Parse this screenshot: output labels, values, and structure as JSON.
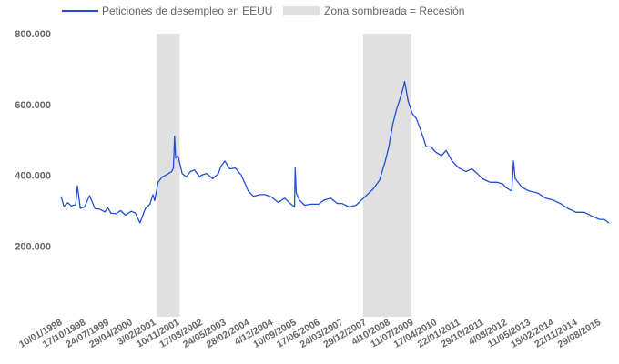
{
  "chart_data": {
    "type": "line",
    "legend": {
      "position": "top-left",
      "series_label": "Peticiones de desempleo en EEUU",
      "shade_label": "Zona sombreada = Recesión"
    },
    "colors": {
      "line": "#1f4fd6",
      "recession": "#e0e0e0",
      "text": "#666666"
    },
    "grid": false,
    "ylim": [
      0,
      800000
    ],
    "ytick_values": [
      200000,
      400000,
      600000,
      800000
    ],
    "ytick_labels": [
      "200.000",
      "400.000",
      "600.000",
      "800.000"
    ],
    "xlim": [
      "1998-01-10",
      "2015-12-31"
    ],
    "xtick_labels": [
      "10/01/1998",
      "17/10/1998",
      "24/07/1999",
      "29/04/2000",
      "3/02/2001",
      "10/11/2001",
      "17/08/2002",
      "24/05/2003",
      "28/02/2004",
      "4/12/2004",
      "10/09/2005",
      "17/06/2006",
      "24/03/2007",
      "29/12/2007",
      "4/10/2008",
      "11/07/2009",
      "17/04/2010",
      "22/01/2011",
      "29/10/2011",
      "4/08/2012",
      "11/05/2013",
      "15/02/2014",
      "22/11/2014",
      "29/08/2015"
    ],
    "xtick_dates": [
      "1998-01-10",
      "1998-10-17",
      "1999-07-24",
      "2000-04-29",
      "2001-02-03",
      "2001-11-10",
      "2002-08-17",
      "2003-05-24",
      "2004-02-28",
      "2004-12-04",
      "2005-09-10",
      "2006-06-17",
      "2007-03-24",
      "2007-12-29",
      "2008-10-04",
      "2009-07-11",
      "2010-04-17",
      "2011-01-22",
      "2011-10-29",
      "2012-08-04",
      "2013-05-11",
      "2014-02-15",
      "2014-11-22",
      "2015-08-29"
    ],
    "recessions": [
      [
        "2001-03-01",
        "2001-11-30"
      ],
      [
        "2007-12-01",
        "2009-06-30"
      ]
    ],
    "series": [
      {
        "name": "Peticiones de desempleo en EEUU",
        "x": [
          "1998-01-10",
          "1998-02-14",
          "1998-04-04",
          "1998-05-16",
          "1998-06-06",
          "1998-07-04",
          "1998-07-25",
          "1998-08-29",
          "1998-10-17",
          "1998-12-19",
          "1999-02-20",
          "1999-04-17",
          "1999-06-19",
          "1999-07-24",
          "1999-08-28",
          "1999-10-30",
          "1999-12-25",
          "2000-02-19",
          "2000-04-29",
          "2000-06-17",
          "2000-08-12",
          "2000-10-14",
          "2000-12-09",
          "2001-01-13",
          "2001-02-03",
          "2001-03-17",
          "2001-05-05",
          "2001-06-30",
          "2001-08-25",
          "2001-09-15",
          "2001-09-29",
          "2001-10-13",
          "2001-11-10",
          "2001-12-29",
          "2002-02-16",
          "2002-04-06",
          "2002-05-25",
          "2002-07-27",
          "2002-08-17",
          "2002-10-19",
          "2002-12-28",
          "2003-03-08",
          "2003-04-05",
          "2003-05-24",
          "2003-07-19",
          "2003-09-27",
          "2003-12-06",
          "2004-02-28",
          "2004-05-01",
          "2004-07-17",
          "2004-09-18",
          "2004-12-04",
          "2005-02-19",
          "2005-05-07",
          "2005-07-23",
          "2005-09-03",
          "2005-09-10",
          "2005-09-24",
          "2005-10-29",
          "2005-12-31",
          "2006-03-18",
          "2006-06-17",
          "2006-08-26",
          "2006-11-11",
          "2007-01-27",
          "2007-03-24",
          "2007-06-16",
          "2007-09-08",
          "2007-12-29",
          "2008-03-29",
          "2008-06-14",
          "2008-08-23",
          "2008-10-04",
          "2008-11-22",
          "2009-01-03",
          "2009-02-28",
          "2009-03-28",
          "2009-04-11",
          "2009-05-23",
          "2009-07-11",
          "2009-08-29",
          "2009-10-17",
          "2009-12-26",
          "2010-02-20",
          "2010-04-17",
          "2010-06-26",
          "2010-08-21",
          "2010-10-30",
          "2011-01-22",
          "2011-04-16",
          "2011-06-25",
          "2011-08-27",
          "2011-10-29",
          "2012-01-28",
          "2012-04-21",
          "2012-06-30",
          "2012-08-04",
          "2012-10-13",
          "2012-11-03",
          "2012-11-24",
          "2013-02-16",
          "2013-05-11",
          "2013-08-17",
          "2013-11-23",
          "2014-02-15",
          "2014-05-17",
          "2014-08-23",
          "2014-11-22",
          "2015-02-28",
          "2015-05-23",
          "2015-08-29",
          "2015-10-24",
          "2015-12-19"
        ],
        "values": [
          340000,
          312000,
          322000,
          312000,
          315000,
          316000,
          370000,
          306000,
          310000,
          342000,
          305000,
          304000,
          296000,
          308000,
          293000,
          291000,
          300000,
          287000,
          298000,
          293000,
          265000,
          305000,
          318000,
          345000,
          328000,
          380000,
          395000,
          402000,
          410000,
          420000,
          510000,
          448000,
          455000,
          405000,
          395000,
          410000,
          415000,
          395000,
          400000,
          405000,
          390000,
          405000,
          425000,
          440000,
          418000,
          420000,
          400000,
          355000,
          340000,
          345000,
          345000,
          338000,
          323000,
          335000,
          318000,
          310000,
          420000,
          350000,
          330000,
          315000,
          318000,
          318000,
          330000,
          335000,
          320000,
          320000,
          310000,
          315000,
          340000,
          360000,
          385000,
          440000,
          480000,
          545000,
          585000,
          625000,
          650000,
          665000,
          610000,
          575000,
          560000,
          530000,
          480000,
          480000,
          465000,
          455000,
          470000,
          440000,
          420000,
          410000,
          418000,
          405000,
          390000,
          380000,
          380000,
          375000,
          365000,
          355000,
          440000,
          390000,
          365000,
          355000,
          350000,
          335000,
          330000,
          320000,
          305000,
          295000,
          295000,
          285000,
          275000,
          275000,
          265000
        ]
      }
    ]
  }
}
